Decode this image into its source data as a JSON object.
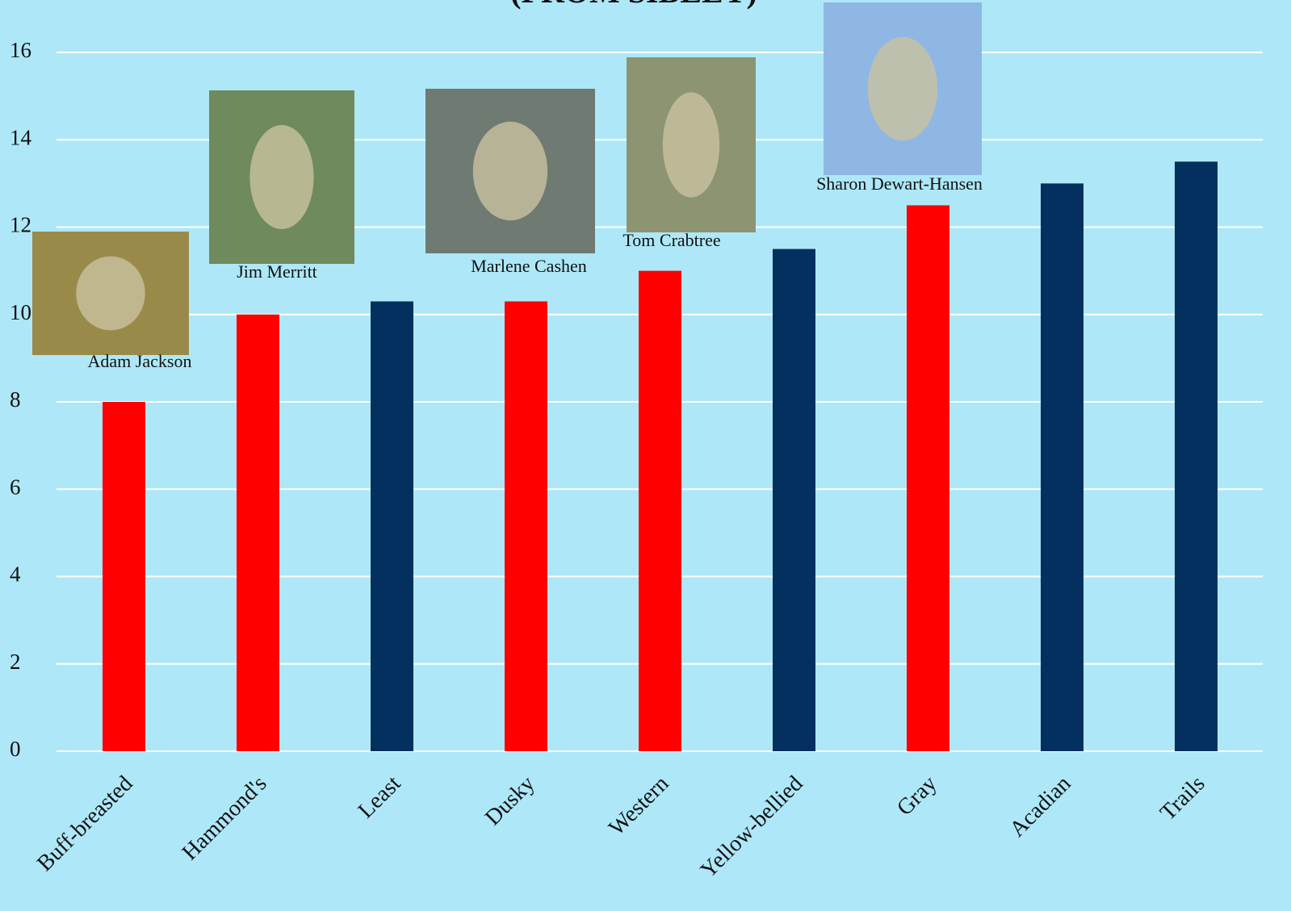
{
  "chart_data": {
    "type": "bar",
    "title": "(FROM SIBLEY)",
    "categories": [
      "Buff-breasted",
      "Hammond's",
      "Least",
      "Dusky",
      "Western",
      "Yellow-bellied",
      "Gray",
      "Acadian",
      "Trails"
    ],
    "values": [
      8.0,
      10.0,
      10.3,
      10.3,
      11.0,
      11.5,
      12.5,
      13.0,
      13.5
    ],
    "colors": [
      "#ff0000",
      "#ff0000",
      "#03305f",
      "#ff0000",
      "#ff0000",
      "#03305f",
      "#ff0000",
      "#03305f",
      "#03305f"
    ],
    "ylim": [
      0,
      16
    ],
    "yticks": [
      0,
      2,
      4,
      6,
      8,
      10,
      12,
      14,
      16
    ],
    "grid": true,
    "annotations": [
      "Adam Jackson",
      "Jim Merritt",
      "Marlene Cashen",
      "Tom Crabtree",
      "Sharon Dewart-Hansen"
    ]
  }
}
